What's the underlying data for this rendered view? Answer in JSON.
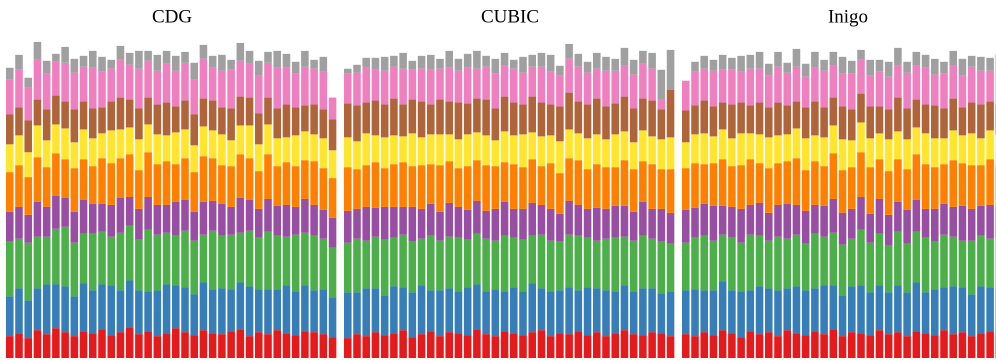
{
  "chart_data": [
    {
      "type": "bar",
      "stacked": true,
      "title": "CDG",
      "ylim": [
        0,
        330
      ],
      "series": [
        {
          "color": "#e41a1c",
          "values": [
            22,
            25,
            20,
            28,
            24,
            30,
            26,
            22,
            27,
            25,
            29,
            23,
            26,
            31,
            24,
            27,
            22,
            25,
            30,
            26,
            23,
            28,
            25,
            24,
            27,
            29,
            22,
            26,
            24,
            28,
            25,
            23,
            27,
            26,
            24,
            21
          ]
        },
        {
          "color": "#377eb8",
          "values": [
            40,
            45,
            38,
            42,
            50,
            44,
            46,
            40,
            48,
            43,
            45,
            50,
            42,
            47,
            44,
            40,
            46,
            49,
            43,
            45,
            41,
            48,
            44,
            46,
            42,
            47,
            50,
            43,
            45,
            41,
            48,
            44,
            46,
            42,
            45,
            40
          ]
        },
        {
          "color": "#4daf4a",
          "values": [
            55,
            50,
            58,
            52,
            48,
            56,
            60,
            54,
            50,
            57,
            53,
            49,
            58,
            55,
            51,
            62,
            56,
            52,
            50,
            57,
            54,
            48,
            59,
            53,
            55,
            50,
            56,
            52,
            58,
            54,
            49,
            57,
            53,
            55,
            51,
            50
          ]
        },
        {
          "color": "#984ea3",
          "values": [
            30,
            32,
            28,
            35,
            30,
            33,
            29,
            31,
            34,
            30,
            28,
            32,
            35,
            29,
            31,
            33,
            30,
            28,
            34,
            31,
            29,
            33,
            30,
            32,
            28,
            35,
            31,
            29,
            33,
            30,
            32,
            28,
            34,
            31,
            29,
            30
          ]
        },
        {
          "color": "#ff7f00",
          "values": [
            40,
            42,
            38,
            45,
            40,
            43,
            39,
            44,
            41,
            38,
            46,
            42,
            40,
            43,
            39,
            45,
            41,
            44,
            38,
            42,
            40,
            46,
            43,
            39,
            41,
            44,
            42,
            38,
            45,
            40,
            43,
            41,
            39,
            44,
            42,
            40
          ]
        },
        {
          "color": "#ffe52e",
          "values": [
            28,
            30,
            25,
            32,
            27,
            29,
            31,
            26,
            30,
            28,
            25,
            33,
            29,
            27,
            31,
            28,
            30,
            26,
            32,
            29,
            27,
            30,
            28,
            31,
            26,
            29,
            33,
            27,
            30,
            28,
            25,
            31,
            29,
            27,
            30,
            28
          ]
        },
        {
          "color": "#b0643a",
          "values": [
            30,
            28,
            32,
            26,
            31,
            29,
            27,
            33,
            28,
            30,
            26,
            29,
            32,
            28,
            31,
            27,
            30,
            33,
            26,
            29,
            31,
            28,
            30,
            27,
            32,
            29,
            28,
            31,
            27,
            30,
            33,
            28,
            26,
            30,
            29,
            31
          ]
        },
        {
          "color": "#f07fbf",
          "values": [
            35,
            38,
            33,
            40,
            36,
            34,
            39,
            37,
            35,
            41,
            36,
            33,
            38,
            35,
            40,
            37,
            34,
            39,
            36,
            38,
            35,
            40,
            33,
            37,
            39,
            36,
            34,
            38,
            35,
            41,
            37,
            34,
            39,
            36,
            38,
            22
          ]
        },
        {
          "color": "#a0a0a0",
          "values": [
            12,
            15,
            10,
            18,
            13,
            8,
            16,
            14,
            11,
            17,
            15,
            9,
            14,
            12,
            18,
            10,
            16,
            13,
            15,
            11,
            17,
            14,
            12,
            16,
            10,
            18,
            13,
            15,
            11,
            17,
            14,
            12,
            16,
            9,
            15,
            0
          ]
        }
      ]
    },
    {
      "type": "bar",
      "stacked": true,
      "title": "CUBIC",
      "ylim": [
        0,
        330
      ],
      "series": [
        {
          "color": "#e41a1c",
          "values": [
            20,
            24,
            22,
            26,
            23,
            25,
            28,
            21,
            24,
            27,
            22,
            26,
            25,
            23,
            29,
            24,
            22,
            27,
            25,
            23,
            26,
            28,
            22,
            25,
            24,
            27,
            23,
            26,
            22,
            25,
            28,
            24,
            23,
            26,
            25,
            22
          ]
        },
        {
          "color": "#377eb8",
          "values": [
            46,
            42,
            48,
            44,
            40,
            47,
            43,
            45,
            49,
            41,
            46,
            44,
            42,
            48,
            45,
            43,
            47,
            40,
            46,
            44,
            49,
            42,
            45,
            43,
            47,
            41,
            48,
            44,
            46,
            42,
            45,
            43,
            47,
            44,
            40,
            45
          ]
        },
        {
          "color": "#4daf4a",
          "values": [
            50,
            54,
            48,
            52,
            56,
            49,
            53,
            51,
            47,
            55,
            50,
            52,
            54,
            48,
            51,
            53,
            49,
            56,
            50,
            52,
            48,
            54,
            51,
            49,
            53,
            55,
            50,
            48,
            52,
            54,
            49,
            51,
            53,
            50,
            52,
            48
          ]
        },
        {
          "color": "#984ea3",
          "values": [
            32,
            30,
            34,
            29,
            33,
            31,
            28,
            35,
            30,
            32,
            29,
            34,
            31,
            30,
            33,
            28,
            32,
            34,
            29,
            31,
            33,
            30,
            32,
            28,
            34,
            31,
            29,
            33,
            30,
            32,
            31,
            29,
            34,
            30,
            33,
            31
          ]
        },
        {
          "color": "#ff7f00",
          "values": [
            44,
            40,
            42,
            46,
            39,
            43,
            45,
            41,
            44,
            40,
            47,
            42,
            39,
            44,
            41,
            46,
            43,
            40,
            45,
            42,
            44,
            39,
            46,
            41,
            43,
            45,
            40,
            44,
            42,
            39,
            46,
            43,
            41,
            45,
            40,
            44
          ]
        },
        {
          "color": "#ffe52e",
          "values": [
            30,
            28,
            32,
            27,
            31,
            29,
            26,
            33,
            28,
            30,
            31,
            27,
            29,
            32,
            28,
            30,
            26,
            31,
            29,
            33,
            27,
            30,
            28,
            32,
            29,
            27,
            31,
            30,
            28,
            33,
            29,
            27,
            31,
            28,
            30,
            32
          ]
        },
        {
          "color": "#b0643a",
          "values": [
            34,
            36,
            31,
            35,
            33,
            37,
            32,
            34,
            36,
            30,
            35,
            33,
            37,
            31,
            34,
            36,
            32,
            35,
            33,
            30,
            36,
            34,
            31,
            35,
            37,
            32,
            34,
            36,
            33,
            31,
            35,
            34,
            32,
            36,
            30,
            48
          ]
        },
        {
          "color": "#f07fbf",
          "values": [
            30,
            33,
            35,
            31,
            34,
            32,
            36,
            30,
            33,
            35,
            31,
            34,
            32,
            36,
            30,
            33,
            35,
            31,
            34,
            32,
            30,
            36,
            33,
            31,
            34,
            35,
            32,
            30,
            36,
            33,
            31,
            34,
            35,
            32,
            10,
            0
          ]
        },
        {
          "color": "#a0a0a0",
          "values": [
            5,
            8,
            10,
            12,
            14,
            11,
            16,
            9,
            13,
            15,
            10,
            17,
            12,
            14,
            18,
            11,
            15,
            13,
            9,
            16,
            12,
            14,
            17,
            10,
            15,
            13,
            11,
            16,
            14,
            12,
            18,
            15,
            13,
            16,
            30,
            40
          ]
        }
      ]
    },
    {
      "type": "bar",
      "stacked": true,
      "title": "Inigo",
      "ylim": [
        0,
        330
      ],
      "series": [
        {
          "color": "#e41a1c",
          "values": [
            24,
            22,
            26,
            23,
            28,
            25,
            21,
            27,
            24,
            26,
            22,
            28,
            25,
            23,
            27,
            24,
            29,
            22,
            26,
            25,
            23,
            28,
            24,
            26,
            22,
            27,
            25,
            23,
            28,
            24,
            26,
            22,
            25,
            27,
            23,
            26
          ]
        },
        {
          "color": "#377eb8",
          "values": [
            44,
            47,
            42,
            45,
            49,
            43,
            46,
            41,
            48,
            44,
            46,
            42,
            47,
            45,
            43,
            49,
            44,
            41,
            46,
            48,
            43,
            45,
            42,
            47,
            44,
            49,
            41,
            46,
            43,
            48,
            45,
            42,
            47,
            44,
            46,
            43
          ]
        },
        {
          "color": "#4daf4a",
          "values": [
            48,
            52,
            55,
            50,
            47,
            53,
            49,
            56,
            51,
            48,
            54,
            50,
            52,
            47,
            55,
            49,
            53,
            51,
            48,
            56,
            50,
            52,
            47,
            54,
            49,
            51,
            55,
            48,
            53,
            50,
            47,
            54,
            51,
            49,
            52,
            48
          ]
        },
        {
          "color": "#984ea3",
          "values": [
            33,
            30,
            32,
            35,
            29,
            31,
            34,
            30,
            33,
            28,
            32,
            35,
            30,
            33,
            29,
            31,
            34,
            32,
            30,
            33,
            29,
            35,
            31,
            30,
            34,
            32,
            29,
            33,
            31,
            30,
            35,
            32,
            30,
            34,
            31,
            29
          ]
        },
        {
          "color": "#ff7f00",
          "values": [
            42,
            45,
            40,
            43,
            47,
            41,
            44,
            46,
            40,
            45,
            42,
            43,
            47,
            41,
            44,
            40,
            46,
            43,
            42,
            45,
            47,
            40,
            44,
            43,
            41,
            46,
            45,
            42,
            40,
            47,
            43,
            44,
            41,
            46,
            42,
            45
          ]
        },
        {
          "color": "#ffe52e",
          "values": [
            26,
            29,
            31,
            27,
            30,
            28,
            32,
            26,
            29,
            31,
            28,
            27,
            30,
            32,
            26,
            29,
            28,
            31,
            27,
            30,
            29,
            26,
            32,
            28,
            30,
            27,
            31,
            29,
            26,
            30,
            28,
            32,
            27,
            29,
            31,
            28
          ]
        },
        {
          "color": "#b0643a",
          "values": [
            32,
            29,
            33,
            30,
            27,
            34,
            31,
            28,
            32,
            30,
            33,
            29,
            27,
            31,
            34,
            30,
            28,
            33,
            31,
            29,
            32,
            27,
            30,
            34,
            31,
            28,
            29,
            33,
            30,
            32,
            28,
            31,
            34,
            29,
            30,
            33
          ]
        },
        {
          "color": "#f07fbf",
          "values": [
            30,
            34,
            32,
            36,
            33,
            35,
            31,
            37,
            34,
            32,
            36,
            33,
            35,
            31,
            34,
            37,
            32,
            33,
            36,
            34,
            31,
            35,
            33,
            32,
            36,
            34,
            37,
            31,
            35,
            33,
            32,
            36,
            34,
            31,
            35,
            33
          ]
        },
        {
          "color": "#a0a0a0",
          "values": [
            0,
            10,
            13,
            11,
            15,
            12,
            16,
            14,
            17,
            12,
            15,
            10,
            18,
            13,
            16,
            11,
            14,
            17,
            13,
            10,
            16,
            12,
            15,
            18,
            11,
            14,
            13,
            16,
            12,
            15,
            17,
            11,
            14,
            13,
            16,
            12
          ]
        }
      ]
    }
  ]
}
